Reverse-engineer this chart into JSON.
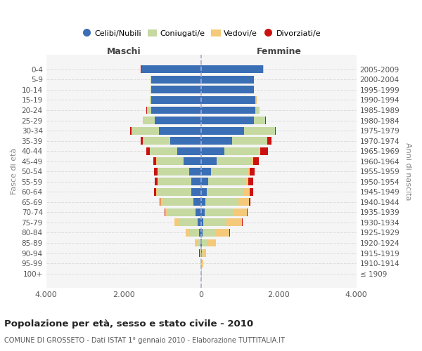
{
  "age_groups": [
    "100+",
    "95-99",
    "90-94",
    "85-89",
    "80-84",
    "75-79",
    "70-74",
    "65-69",
    "60-64",
    "55-59",
    "50-54",
    "45-49",
    "40-44",
    "35-39",
    "30-34",
    "25-29",
    "20-24",
    "15-19",
    "10-14",
    "5-9",
    "0-4"
  ],
  "birth_years": [
    "≤ 1909",
    "1910-1914",
    "1915-1919",
    "1920-1924",
    "1925-1929",
    "1930-1934",
    "1935-1939",
    "1940-1944",
    "1945-1949",
    "1950-1954",
    "1955-1959",
    "1960-1964",
    "1965-1969",
    "1970-1974",
    "1975-1979",
    "1980-1984",
    "1985-1989",
    "1990-1994",
    "1995-1999",
    "2000-2004",
    "2005-2009"
  ],
  "colors": {
    "celibi": "#3a6eb5",
    "coniugati": "#c5d9a0",
    "vedovi": "#f5c97a",
    "divorziati": "#cc1111"
  },
  "maschi": {
    "celibi": [
      2,
      5,
      8,
      25,
      50,
      90,
      150,
      200,
      250,
      260,
      320,
      450,
      620,
      800,
      1100,
      1200,
      1300,
      1300,
      1300,
      1300,
      1550
    ],
    "coniugati": [
      2,
      8,
      20,
      80,
      250,
      500,
      700,
      800,
      900,
      850,
      800,
      700,
      700,
      700,
      700,
      300,
      100,
      20,
      5,
      2,
      2
    ],
    "vedovi": [
      1,
      5,
      20,
      60,
      100,
      100,
      80,
      60,
      20,
      10,
      10,
      10,
      10,
      5,
      5,
      5,
      5,
      2,
      2,
      2,
      2
    ],
    "divorziati": [
      0,
      0,
      2,
      5,
      5,
      5,
      10,
      20,
      50,
      80,
      80,
      80,
      80,
      50,
      30,
      10,
      5,
      2,
      2,
      2,
      2
    ]
  },
  "femmine": {
    "celibi": [
      2,
      5,
      10,
      20,
      30,
      50,
      80,
      100,
      150,
      180,
      250,
      400,
      600,
      800,
      1100,
      1350,
      1400,
      1400,
      1350,
      1350,
      1600
    ],
    "coniugati": [
      2,
      10,
      30,
      150,
      350,
      600,
      750,
      850,
      950,
      950,
      950,
      900,
      900,
      900,
      800,
      300,
      100,
      20,
      5,
      2,
      2
    ],
    "vedovi": [
      5,
      30,
      80,
      200,
      350,
      400,
      350,
      280,
      150,
      80,
      50,
      30,
      20,
      10,
      5,
      5,
      5,
      2,
      2,
      2,
      2
    ],
    "divorziati": [
      0,
      0,
      2,
      5,
      5,
      10,
      20,
      30,
      80,
      120,
      130,
      150,
      200,
      100,
      20,
      5,
      5,
      2,
      2,
      2,
      2
    ]
  },
  "xlim": 4000,
  "title": "Popolazione per età, sesso e stato civile - 2010",
  "subtitle": "COMUNE DI GROSSETO - Dati ISTAT 1° gennaio 2010 - Elaborazione TUTTITALIA.IT",
  "ylabel_left": "Fasce di età",
  "ylabel_right": "Anni di nascita",
  "xlabel_left": "Maschi",
  "xlabel_right": "Femmine",
  "bg_color": "#f5f5f5",
  "grid_color": "#dddddd",
  "xtick_labels": [
    "4.000",
    "2.000",
    "0",
    "2.000",
    "4.000"
  ]
}
